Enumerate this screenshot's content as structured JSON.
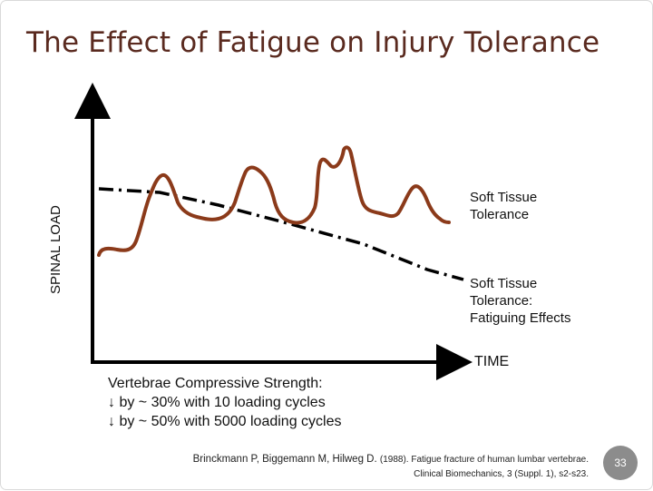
{
  "slide": {
    "title": "The Effect of Fatigue on Injury Tolerance",
    "y_axis_label": "SPINAL LOAD",
    "x_axis_label": "TIME",
    "labels": {
      "soft_tissue_line1": "Soft Tissue",
      "soft_tissue_line2": "Tolerance",
      "fatigue_line1": "Soft Tissue",
      "fatigue_line2": "Tolerance:",
      "fatigue_line3": "Fatiguing Effects"
    },
    "vertebrae": {
      "line1": "Vertebrae Compressive Strength:",
      "line2": "↓ by ~ 30% with 10 loading cycles",
      "line3": "↓ by ~ 50% with 5000 loading cycles"
    },
    "citation": {
      "authors": "Brinckmann P, Biggemann M, Hilweg D.",
      "rest_line1": "(1988). Fatigue fracture of human lumbar vertebrae.",
      "line2": "Clinical Biomechanics, 3 (Suppl. 1), s2-s23."
    },
    "page_number": "33",
    "colors": {
      "title": "#5a2a1f",
      "load_curve": "#8b3a1a",
      "axes": "#000000",
      "page_badge": "#8c8c8c"
    }
  }
}
